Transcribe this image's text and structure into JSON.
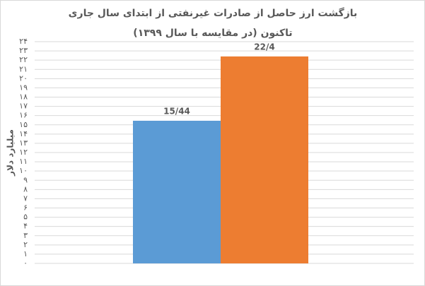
{
  "chart_data": {
    "type": "bar",
    "title": "بازگشت ارز حاصل از صادرات غیرنفتی از ابتدای سال جاری تاکنون (در مقایسه با سال ۱۳۹۹)",
    "y_label": "میلیارد دلار",
    "categories": [
      null,
      null
    ],
    "values": [
      15.44,
      22.4
    ],
    "value_labels": [
      "15/44",
      "22/4"
    ],
    "colors": [
      "#5b9bd5",
      "#ed7d31"
    ],
    "ylim": [
      0,
      24
    ],
    "yticks": [
      {
        "value": 0,
        "label": "۰"
      },
      {
        "value": 1,
        "label": "۱"
      },
      {
        "value": 2,
        "label": "۲"
      },
      {
        "value": 3,
        "label": "۳"
      },
      {
        "value": 4,
        "label": "۴"
      },
      {
        "value": 5,
        "label": "۵"
      },
      {
        "value": 6,
        "label": "۶"
      },
      {
        "value": 7,
        "label": "۷"
      },
      {
        "value": 8,
        "label": "۸"
      },
      {
        "value": 9,
        "label": "۹"
      },
      {
        "value": 10,
        "label": "۱۰"
      },
      {
        "value": 11,
        "label": "۱۱"
      },
      {
        "value": 12,
        "label": "۱۲"
      },
      {
        "value": 13,
        "label": "۱۳"
      },
      {
        "value": 14,
        "label": "۱۴"
      },
      {
        "value": 15,
        "label": "۱۵"
      },
      {
        "value": 16,
        "label": "۱۶"
      },
      {
        "value": 17,
        "label": "۱۷"
      },
      {
        "value": 18,
        "label": "۱۸"
      },
      {
        "value": 19,
        "label": "۱۹"
      },
      {
        "value": 20,
        "label": "۲۰"
      },
      {
        "value": 21,
        "label": "۲۱"
      },
      {
        "value": 22,
        "label": "۲۲"
      },
      {
        "value": 23,
        "label": "۲۳"
      },
      {
        "value": 24,
        "label": "۲۴"
      }
    ],
    "grid": true
  }
}
